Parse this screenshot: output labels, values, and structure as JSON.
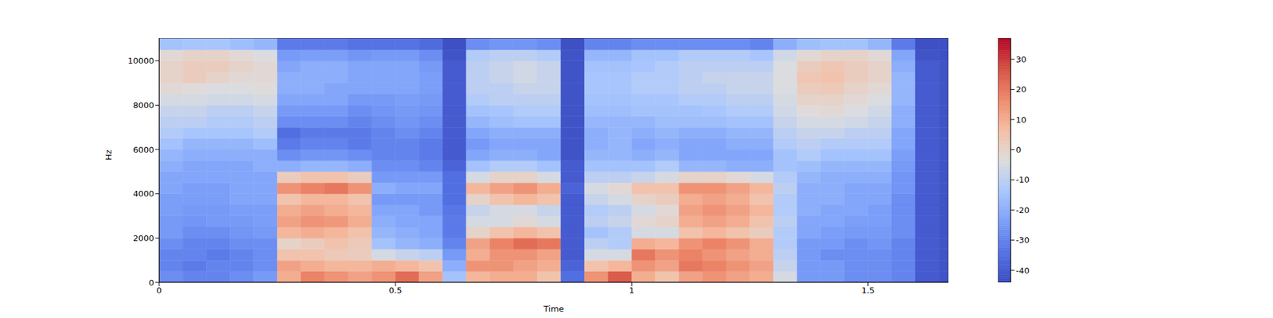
{
  "chart_data": {
    "type": "heatmap",
    "xlabel": "Time",
    "ylabel": "Hz",
    "xlim": [
      0,
      1.67
    ],
    "xticks": [
      0,
      0.5,
      1,
      1.5
    ],
    "ylim": [
      0,
      11025
    ],
    "yticks": [
      0,
      2000,
      4000,
      6000,
      8000,
      10000
    ],
    "x_edges": [
      0,
      0.05,
      0.1,
      0.15,
      0.2,
      0.25,
      0.3,
      0.35,
      0.4,
      0.45,
      0.5,
      0.55,
      0.6,
      0.65,
      0.7,
      0.75,
      0.8,
      0.85,
      0.9,
      0.95,
      1,
      1.05,
      1.1,
      1.15,
      1.2,
      1.25,
      1.3,
      1.35,
      1.4,
      1.45,
      1.5,
      1.55,
      1.6,
      1.65,
      1.67
    ],
    "y_edges": [
      0,
      500,
      1000,
      1500,
      2000,
      2500,
      3000,
      3500,
      4000,
      4500,
      5000,
      5500,
      6000,
      6500,
      7000,
      7500,
      8000,
      8500,
      9000,
      9500,
      10000,
      10500,
      11025
    ],
    "z": [
      [
        -28,
        -30,
        -30,
        -28,
        -25,
        10,
        18,
        15,
        12,
        15,
        22,
        12,
        -15,
        8,
        10,
        10,
        5,
        -35,
        15,
        25,
        10,
        5,
        12,
        15,
        12,
        10,
        -5,
        -25,
        -25,
        -28,
        -28,
        -30,
        -40,
        -42
      ],
      [
        -30,
        -32,
        -30,
        -30,
        -28,
        12,
        10,
        8,
        8,
        10,
        8,
        5,
        -20,
        15,
        15,
        12,
        10,
        -38,
        5,
        8,
        15,
        12,
        20,
        18,
        15,
        12,
        -8,
        -25,
        -25,
        -28,
        -28,
        -30,
        -40,
        -42
      ],
      [
        -30,
        -30,
        -32,
        -30,
        -28,
        5,
        5,
        3,
        2,
        -5,
        -8,
        -10,
        -25,
        10,
        15,
        15,
        12,
        -40,
        -5,
        -5,
        20,
        15,
        18,
        15,
        12,
        10,
        -10,
        -25,
        -28,
        -28,
        -28,
        -30,
        -40,
        -42
      ],
      [
        -28,
        -30,
        -30,
        -28,
        -28,
        0,
        2,
        5,
        3,
        -15,
        -18,
        -20,
        -30,
        12,
        18,
        22,
        20,
        -40,
        -10,
        -12,
        10,
        8,
        15,
        18,
        15,
        10,
        -12,
        -25,
        -25,
        -28,
        -26,
        -30,
        -40,
        -42
      ],
      [
        -25,
        -28,
        -28,
        -26,
        -25,
        8,
        10,
        8,
        5,
        -18,
        -20,
        -22,
        -32,
        0,
        5,
        8,
        5,
        -40,
        -15,
        -12,
        -5,
        -5,
        5,
        8,
        5,
        2,
        -12,
        -22,
        -24,
        -25,
        -25,
        -28,
        -40,
        -42
      ],
      [
        -25,
        -26,
        -25,
        -25,
        -24,
        12,
        15,
        14,
        10,
        -20,
        -22,
        -22,
        -32,
        -5,
        -5,
        -2,
        -5,
        -40,
        -10,
        -8,
        -2,
        0,
        10,
        12,
        10,
        5,
        -10,
        -22,
        -22,
        -24,
        -24,
        -28,
        -40,
        -42
      ],
      [
        -24,
        -25,
        -25,
        -24,
        -24,
        10,
        12,
        10,
        8,
        -22,
        -22,
        -25,
        -33,
        -8,
        -5,
        -5,
        -8,
        -40,
        -12,
        -10,
        -5,
        -2,
        12,
        15,
        12,
        8,
        -12,
        -20,
        -22,
        -22,
        -24,
        -28,
        -40,
        -42
      ],
      [
        -24,
        -24,
        -24,
        -22,
        -22,
        5,
        8,
        8,
        5,
        -25,
        -25,
        -25,
        -35,
        0,
        5,
        8,
        5,
        -40,
        -8,
        -5,
        0,
        2,
        10,
        12,
        10,
        5,
        -12,
        -20,
        -20,
        -22,
        -22,
        -28,
        -40,
        -42
      ],
      [
        -22,
        -24,
        -24,
        -22,
        -22,
        15,
        18,
        20,
        15,
        -20,
        -22,
        -22,
        -35,
        8,
        12,
        15,
        10,
        -38,
        -5,
        -2,
        5,
        5,
        15,
        15,
        12,
        8,
        -10,
        -20,
        -20,
        -22,
        -22,
        -26,
        -40,
        -42
      ],
      [
        -22,
        -22,
        -22,
        -22,
        -22,
        2,
        5,
        5,
        2,
        -25,
        -25,
        -25,
        -35,
        -5,
        0,
        0,
        -5,
        -40,
        -10,
        -10,
        -8,
        -5,
        0,
        0,
        -2,
        -5,
        -12,
        -18,
        -20,
        -20,
        -20,
        -26,
        -40,
        -42
      ],
      [
        -20,
        -22,
        -22,
        -22,
        -20,
        -20,
        -18,
        -18,
        -20,
        -28,
        -28,
        -30,
        -38,
        -15,
        -12,
        -12,
        -15,
        -40,
        -15,
        -15,
        -15,
        -12,
        -18,
        -18,
        -20,
        -20,
        -15,
        -16,
        -18,
        -18,
        -18,
        -25,
        -40,
        -42
      ],
      [
        -18,
        -20,
        -20,
        -20,
        -20,
        -28,
        -26,
        -26,
        -28,
        -30,
        -30,
        -32,
        -40,
        -22,
        -20,
        -20,
        -22,
        -42,
        -18,
        -18,
        -20,
        -18,
        -22,
        -22,
        -22,
        -22,
        -15,
        -12,
        -15,
        -15,
        -15,
        -24,
        -40,
        -42
      ],
      [
        -15,
        -18,
        -18,
        -18,
        -16,
        -32,
        -30,
        -30,
        -32,
        -30,
        -30,
        -32,
        -40,
        -25,
        -22,
        -22,
        -22,
        -42,
        -20,
        -18,
        -22,
        -20,
        -22,
        -22,
        -20,
        -20,
        -12,
        -10,
        -12,
        -12,
        -12,
        -22,
        -40,
        -42
      ],
      [
        -12,
        -14,
        -14,
        -14,
        -12,
        -35,
        -32,
        -32,
        -32,
        -30,
        -28,
        -30,
        -40,
        -22,
        -20,
        -20,
        -20,
        -42,
        -20,
        -18,
        -20,
        -18,
        -20,
        -20,
        -18,
        -18,
        -10,
        -8,
        -8,
        -10,
        -10,
        -22,
        -40,
        -42
      ],
      [
        -10,
        -10,
        -12,
        -12,
        -10,
        -28,
        -28,
        -28,
        -30,
        -28,
        -26,
        -28,
        -40,
        -18,
        -16,
        -15,
        -15,
        -42,
        -18,
        -18,
        -18,
        -16,
        -16,
        -16,
        -15,
        -15,
        -8,
        -5,
        -5,
        -6,
        -8,
        -20,
        -40,
        -42
      ],
      [
        -8,
        -8,
        -10,
        -10,
        -8,
        -25,
        -25,
        -25,
        -28,
        -26,
        -25,
        -26,
        -40,
        -15,
        -14,
        -12,
        -12,
        -42,
        -16,
        -16,
        -15,
        -15,
        -15,
        -14,
        -12,
        -12,
        -6,
        -3,
        -2,
        -4,
        -6,
        -20,
        -40,
        -42
      ],
      [
        -5,
        -5,
        -6,
        -6,
        -5,
        -22,
        -22,
        -22,
        -25,
        -25,
        -24,
        -25,
        -40,
        -12,
        -10,
        -10,
        -10,
        -42,
        -15,
        -15,
        -14,
        -14,
        -12,
        -12,
        -10,
        -10,
        -5,
        0,
        0,
        -2,
        -4,
        -18,
        -40,
        -42
      ],
      [
        -2,
        -3,
        -4,
        -4,
        -3,
        -20,
        -20,
        -22,
        -22,
        -22,
        -22,
        -24,
        -40,
        -10,
        -10,
        -8,
        -8,
        -42,
        -14,
        -14,
        -12,
        -12,
        -10,
        -10,
        -8,
        -8,
        -4,
        2,
        3,
        0,
        -2,
        -18,
        -40,
        -42
      ],
      [
        0,
        2,
        0,
        -2,
        -2,
        -20,
        -20,
        -20,
        -22,
        -22,
        -22,
        -24,
        -40,
        -10,
        -8,
        -6,
        -8,
        -42,
        -14,
        -14,
        -12,
        -12,
        -10,
        -8,
        -8,
        -8,
        -4,
        4,
        5,
        2,
        0,
        -18,
        -40,
        -42
      ],
      [
        0,
        2,
        2,
        0,
        -2,
        -22,
        -20,
        -20,
        -22,
        -22,
        -22,
        -25,
        -40,
        -10,
        -8,
        -6,
        -8,
        -42,
        -15,
        -15,
        -14,
        -12,
        -10,
        -10,
        -10,
        -10,
        -4,
        2,
        4,
        2,
        0,
        -20,
        -40,
        -42
      ],
      [
        -2,
        0,
        0,
        -2,
        -4,
        -25,
        -24,
        -24,
        -26,
        -25,
        -25,
        -28,
        -42,
        -12,
        -10,
        -10,
        -12,
        -42,
        -18,
        -18,
        -15,
        -15,
        -12,
        -12,
        -12,
        -14,
        -6,
        -2,
        0,
        0,
        -2,
        -22,
        -42,
        -43
      ],
      [
        -15,
        -14,
        -14,
        -16,
        -18,
        -32,
        -32,
        -32,
        -34,
        -34,
        -34,
        -36,
        -43,
        -28,
        -26,
        -26,
        -28,
        -43,
        -30,
        -30,
        -28,
        -28,
        -28,
        -28,
        -28,
        -30,
        -20,
        -16,
        -15,
        -15,
        -18,
        -32,
        -43,
        -43
      ]
    ],
    "colorbar": {
      "range": [
        -44,
        37
      ],
      "ticks": [
        -40,
        -30,
        -20,
        -10,
        0,
        10,
        20,
        30
      ]
    }
  }
}
